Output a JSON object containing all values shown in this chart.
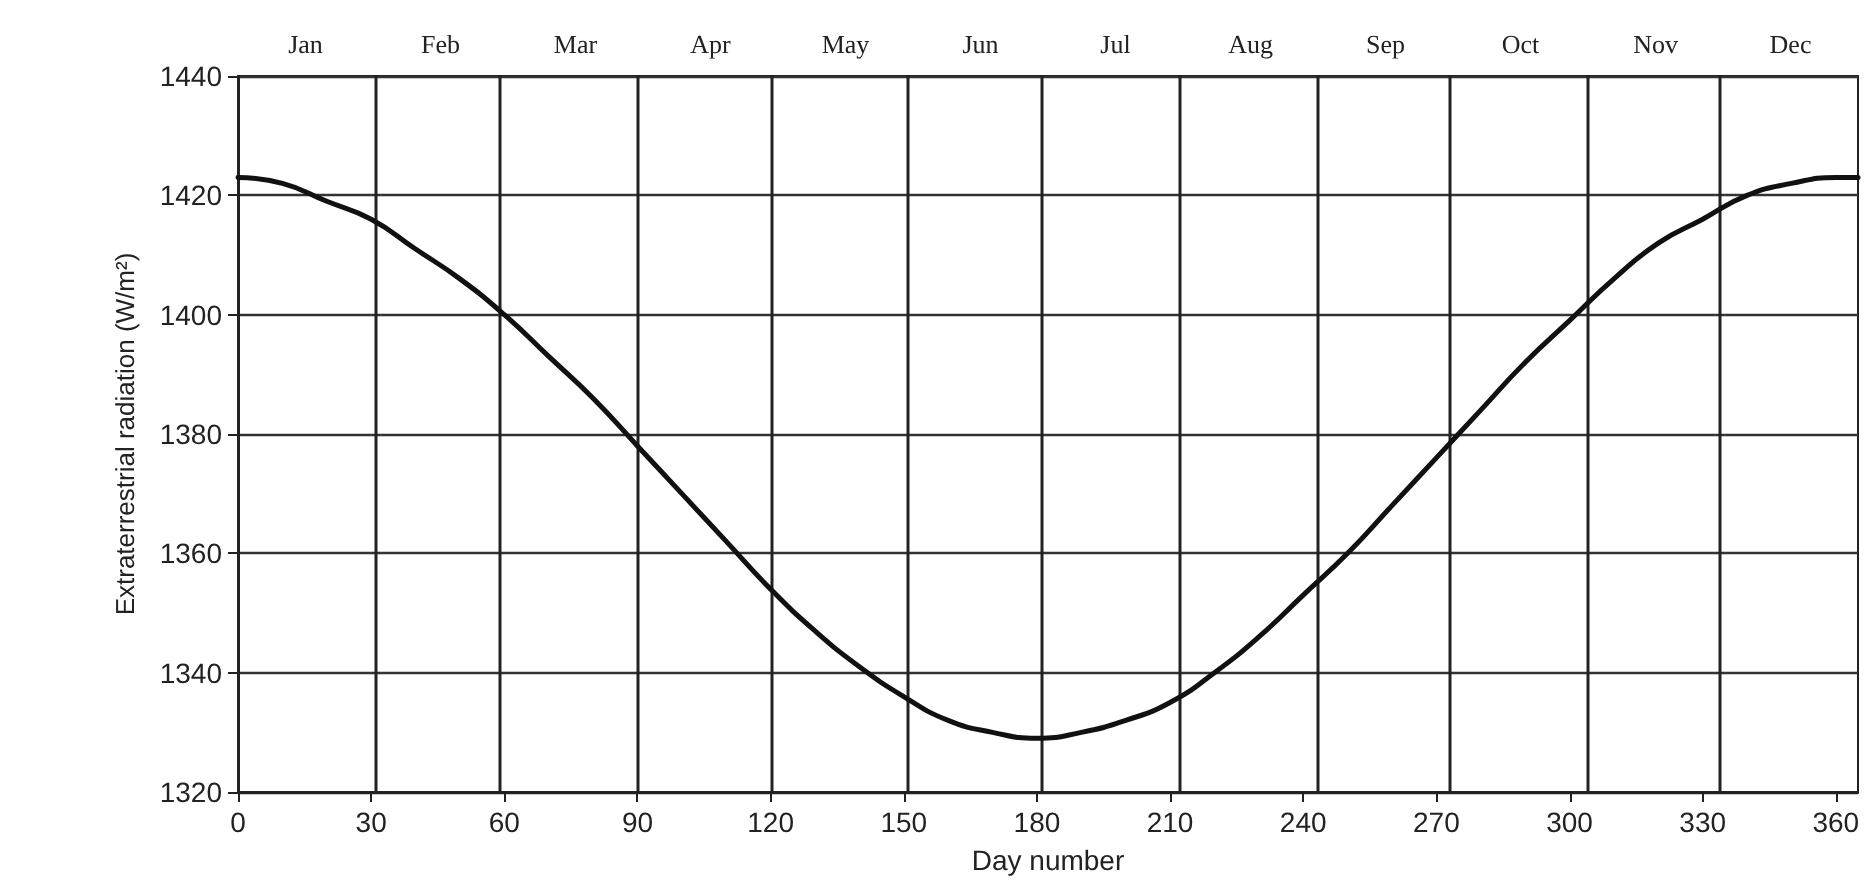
{
  "chart_data": {
    "type": "line",
    "xlabel": "Day number",
    "ylabel": "Extraterrestrial radiation (W/m²)",
    "x": [
      0,
      10,
      20,
      30,
      40,
      50,
      60,
      70,
      80,
      90,
      100,
      110,
      120,
      130,
      140,
      150,
      160,
      170,
      180,
      190,
      200,
      210,
      220,
      230,
      240,
      250,
      260,
      270,
      280,
      290,
      300,
      310,
      320,
      330,
      340,
      350,
      360,
      365
    ],
    "series": [
      {
        "color": "#111111",
        "values": [
          1423,
          1422,
          1419,
          1416,
          1411,
          1406,
          1400,
          1393,
          1386,
          1378,
          1370,
          1362,
          1354,
          1347,
          1341,
          1336,
          1332,
          1330,
          1329,
          1330,
          1332,
          1335,
          1340,
          1346,
          1353,
          1360,
          1368,
          1376,
          1384,
          1392,
          1399,
          1406,
          1412,
          1416,
          1420,
          1422,
          1423,
          1423
        ]
      }
    ],
    "xlim": [
      0,
      365
    ],
    "xticks": [
      0,
      30,
      60,
      90,
      120,
      150,
      180,
      210,
      240,
      270,
      300,
      330,
      360
    ],
    "ylim": [
      1320,
      1440
    ],
    "yticks": [
      1320,
      1340,
      1360,
      1380,
      1400,
      1420,
      1440
    ],
    "annotations": [
      "Jan",
      "Feb",
      "Mar",
      "Apr",
      "May",
      "Jun",
      "Jul",
      "Aug",
      "Sep",
      "Oct",
      "Nov",
      "Dec"
    ],
    "ref_lines": [
      {
        "axis": "x",
        "value": 31,
        "color": "#222222"
      },
      {
        "axis": "x",
        "value": 59,
        "color": "#222222"
      },
      {
        "axis": "x",
        "value": 90,
        "color": "#222222"
      },
      {
        "axis": "x",
        "value": 120,
        "color": "#222222"
      },
      {
        "axis": "x",
        "value": 151,
        "color": "#222222"
      },
      {
        "axis": "x",
        "value": 181,
        "color": "#222222"
      },
      {
        "axis": "x",
        "value": 212,
        "color": "#222222"
      },
      {
        "axis": "x",
        "value": 243,
        "color": "#222222"
      },
      {
        "axis": "x",
        "value": 273,
        "color": "#222222"
      },
      {
        "axis": "x",
        "value": 304,
        "color": "#222222"
      },
      {
        "axis": "x",
        "value": 334,
        "color": "#222222"
      }
    ],
    "grid": "y",
    "marker": "none",
    "line_style": "solid"
  }
}
